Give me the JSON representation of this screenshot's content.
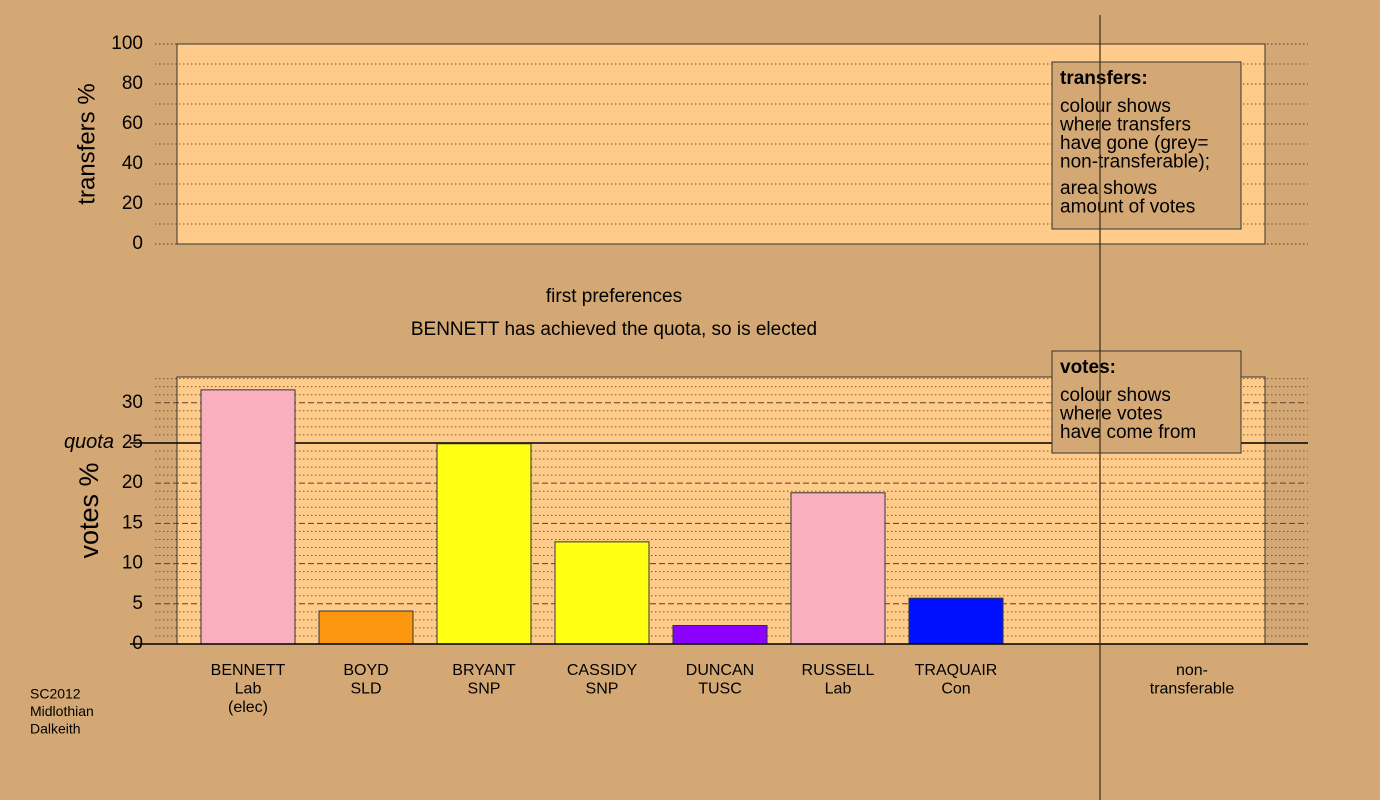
{
  "chart_data": [
    {
      "type": "bar",
      "ylabel": "transfers %",
      "ylim": [
        0,
        100
      ],
      "yticks": [
        0,
        20,
        40,
        60,
        80,
        100
      ],
      "minor_yticks": [
        10,
        30,
        50,
        70,
        90
      ],
      "grid": true,
      "legend": {
        "title": "transfers:",
        "lines": [
          "colour shows",
          "where transfers",
          "have gone (grey=",
          "non-transferable);",
          "area shows",
          "amount of votes"
        ]
      }
    },
    {
      "type": "bar",
      "title": "first preferences",
      "subtitle": "BENNETT has achieved the quota, so is elected",
      "ylabel": "votes %",
      "ylim": [
        0,
        33.2
      ],
      "yticks": [
        0,
        5,
        10,
        15,
        20,
        25,
        30
      ],
      "minor_yticks": [
        1,
        2,
        3,
        4,
        6,
        7,
        8,
        9,
        11,
        12,
        13,
        14,
        16,
        17,
        18,
        19,
        21,
        22,
        23,
        24,
        26,
        27,
        28,
        29,
        31,
        32,
        33
      ],
      "grid": true,
      "quota": 25,
      "quota_label": "quota",
      "categories": [
        [
          "BENNETT",
          "Lab",
          "(elec)"
        ],
        [
          "BOYD",
          "SLD"
        ],
        [
          "BRYANT",
          "SNP"
        ],
        [
          "CASSIDY",
          "SNP"
        ],
        [
          "DUNCAN",
          "TUSC"
        ],
        [
          "RUSSELL",
          "Lab"
        ],
        [
          "TRAQUAIR",
          "Con"
        ],
        null,
        [
          "non-",
          "transferable"
        ]
      ],
      "values": [
        31.6,
        4.1,
        24.9,
        12.7,
        2.3,
        18.8,
        5.7,
        null,
        null
      ],
      "colors": [
        "#fbb0c0",
        "#fb960f",
        "#ffff14",
        "#ffff14",
        "#8c00ff",
        "#fbb0c0",
        "#0010ff",
        null,
        null
      ],
      "legend": {
        "title": "votes:",
        "lines": [
          "colour shows",
          "where votes",
          "have come from"
        ]
      }
    }
  ],
  "footer": [
    "SC2012",
    "Midlothian",
    "Dalkeith"
  ]
}
